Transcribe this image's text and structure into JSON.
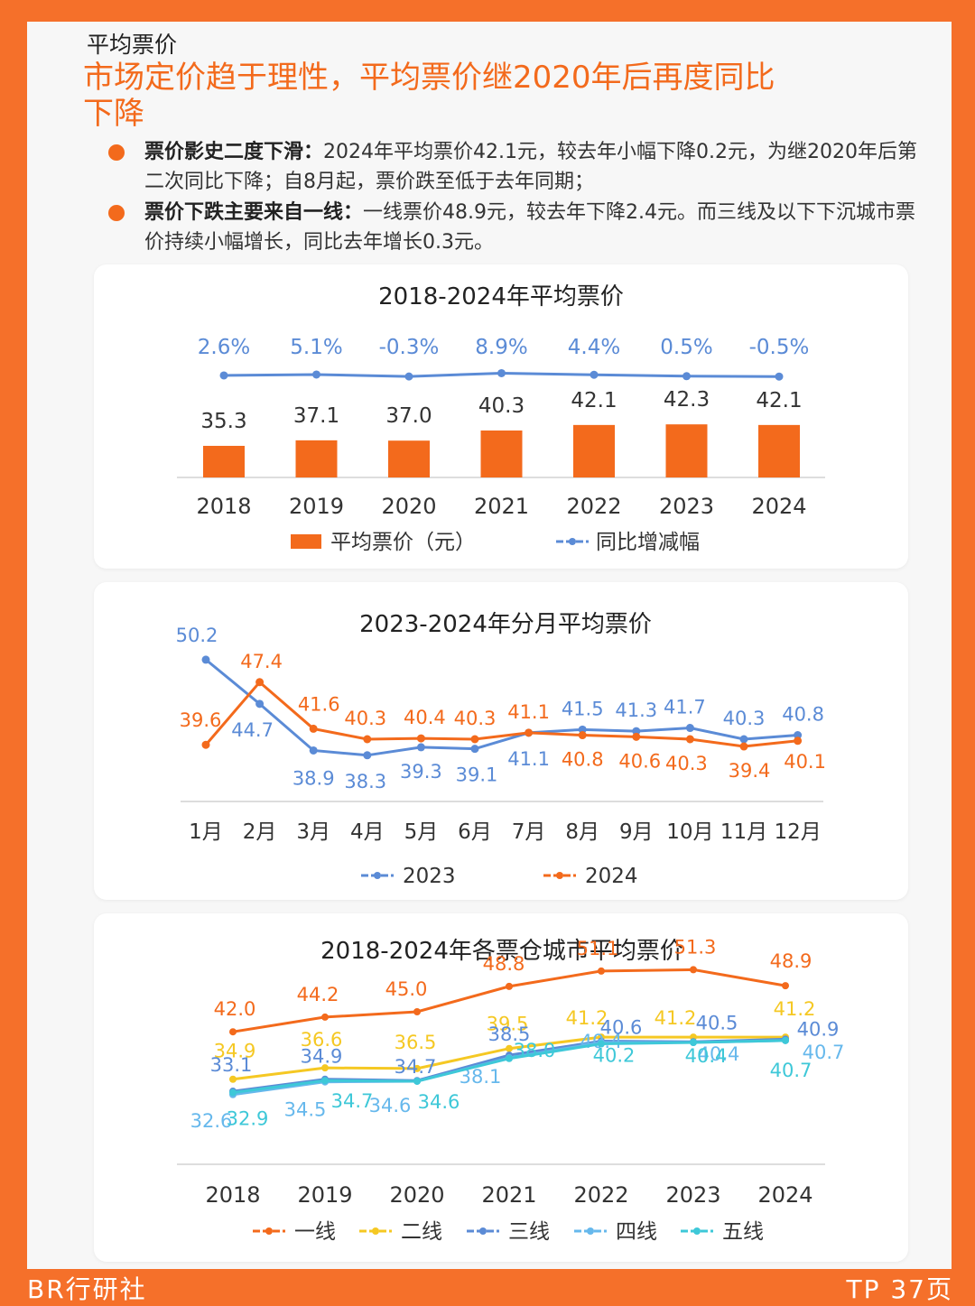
{
  "header": {
    "section": "平均票价",
    "headline": "市场定价趋于理性，平均票价继2020年后再度同比下降",
    "bullets": [
      {
        "lead": "票价影史二度下滑：",
        "text": "2024年平均票价42.1元，较去年小幅下降0.2元，为继2020年后第二次同比下降；自8月起，票价跌至低于去年同期；"
      },
      {
        "lead": "票价下跌主要来自一线：",
        "text": "一线票价48.9元，较去年下降2.4元。而三线及以下下沉城市票价持续小幅增长，同比去年增长0.3元。"
      }
    ]
  },
  "colors": {
    "accent": "#f36a1c",
    "blue": "#5b8bd6",
    "yellow": "#f5c823",
    "sky": "#66b8ec",
    "cyan": "#3ec8d8"
  },
  "chart_data": [
    {
      "type": "bar",
      "title": "2018-2024年平均票价",
      "categories": [
        "2018",
        "2019",
        "2020",
        "2021",
        "2022",
        "2023",
        "2024"
      ],
      "series": [
        {
          "name": "平均票价（元）",
          "values": [
            35.3,
            37.1,
            37.0,
            40.3,
            42.1,
            42.3,
            42.1
          ],
          "labels": [
            "35.3",
            "37.1",
            "37.0",
            "40.3",
            "42.1",
            "42.3",
            "42.1"
          ]
        },
        {
          "name": "同比增减幅",
          "type": "line",
          "values": [
            2.6,
            5.1,
            -0.3,
            8.9,
            4.4,
            0.5,
            -0.5
          ],
          "labels": [
            "2.6%",
            "5.1%",
            "-0.3%",
            "8.9%",
            "4.4%",
            "0.5%",
            "-0.5%"
          ]
        }
      ]
    },
    {
      "type": "line",
      "title": "2023-2024年分月平均票价",
      "categories": [
        "1月",
        "2月",
        "3月",
        "4月",
        "5月",
        "6月",
        "7月",
        "8月",
        "9月",
        "10月",
        "11月",
        "12月"
      ],
      "series": [
        {
          "name": "2023",
          "values": [
            50.2,
            44.7,
            38.9,
            38.3,
            39.3,
            39.1,
            41.1,
            41.5,
            41.3,
            41.7,
            40.3,
            40.8
          ]
        },
        {
          "name": "2024",
          "values": [
            39.6,
            47.4,
            41.6,
            40.3,
            40.4,
            40.3,
            41.1,
            40.8,
            40.6,
            40.3,
            39.4,
            40.1
          ]
        }
      ]
    },
    {
      "type": "line",
      "title": "2018-2024年各票仓城市平均票价",
      "categories": [
        "2018",
        "2019",
        "2020",
        "2021",
        "2022",
        "2023",
        "2024"
      ],
      "series": [
        {
          "name": "一线",
          "values": [
            42.0,
            44.2,
            45.0,
            48.8,
            51.1,
            51.3,
            48.9
          ]
        },
        {
          "name": "二线",
          "values": [
            34.9,
            36.6,
            36.5,
            39.5,
            41.2,
            41.2,
            41.2
          ]
        },
        {
          "name": "三线",
          "values": [
            33.1,
            34.9,
            34.7,
            38.5,
            40.6,
            40.5,
            40.9
          ]
        },
        {
          "name": "四线",
          "values": [
            32.6,
            34.5,
            34.6,
            38.1,
            40.4,
            40.4,
            40.7
          ]
        },
        {
          "name": "五线",
          "values": [
            32.9,
            34.7,
            34.6,
            38.0,
            40.2,
            40.4,
            40.7
          ]
        }
      ]
    }
  ],
  "footer": {
    "left": "BR行研社",
    "right": "TP 37页"
  }
}
